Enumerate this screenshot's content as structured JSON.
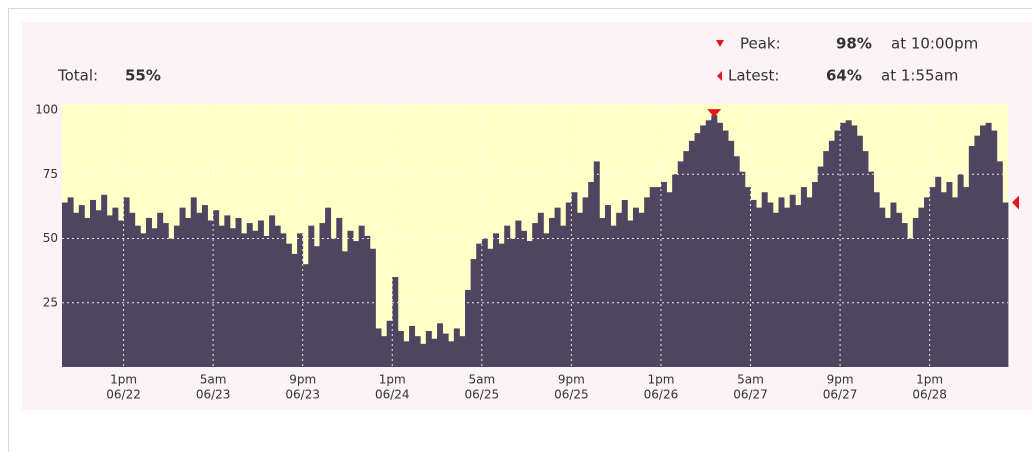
{
  "chart_data": {
    "type": "bar",
    "total": {
      "label": "Total:",
      "value": 55,
      "value_label": "55%"
    },
    "peak": {
      "label": "Peak:",
      "value": 98,
      "value_label": "98%",
      "time": "at 10:00pm",
      "x": 116
    },
    "latest": {
      "label": "Latest:",
      "value": 64,
      "value_label": "64%",
      "time": "at 1:55am",
      "x": 168
    },
    "color": "#4e4660",
    "plot_background": "#ffffc8",
    "marker_color": "#e4161c",
    "grid": true,
    "ylim": [
      0,
      100
    ],
    "yticks": [
      25,
      50,
      75,
      100
    ],
    "xlim": [
      0,
      169
    ],
    "xticks": [
      {
        "value": 11,
        "label": "1pm",
        "date": "06/22"
      },
      {
        "value": 27,
        "label": "5am",
        "date": "06/23"
      },
      {
        "value": 43,
        "label": "9pm",
        "date": "06/23"
      },
      {
        "value": 59,
        "label": "1pm",
        "date": "06/24"
      },
      {
        "value": 75,
        "label": "5am",
        "date": "06/25"
      },
      {
        "value": 91,
        "label": "9pm",
        "date": "06/25"
      },
      {
        "value": 107,
        "label": "1pm",
        "date": "06/26"
      },
      {
        "value": 123,
        "label": "5am",
        "date": "06/27"
      },
      {
        "value": 139,
        "label": "9pm",
        "date": "06/27"
      },
      {
        "value": 155,
        "label": "1pm",
        "date": "06/28"
      }
    ],
    "x": [
      0,
      1,
      2,
      3,
      4,
      5,
      6,
      7,
      8,
      9,
      10,
      11,
      12,
      13,
      14,
      15,
      16,
      17,
      18,
      19,
      20,
      21,
      22,
      23,
      24,
      25,
      26,
      27,
      28,
      29,
      30,
      31,
      32,
      33,
      34,
      35,
      36,
      37,
      38,
      39,
      40,
      41,
      42,
      43,
      44,
      45,
      46,
      47,
      48,
      49,
      50,
      51,
      52,
      53,
      54,
      55,
      56,
      57,
      58,
      59,
      60,
      61,
      62,
      63,
      64,
      65,
      66,
      67,
      68,
      69,
      70,
      71,
      72,
      73,
      74,
      75,
      76,
      77,
      78,
      79,
      80,
      81,
      82,
      83,
      84,
      85,
      86,
      87,
      88,
      89,
      90,
      91,
      92,
      93,
      94,
      95,
      96,
      97,
      98,
      99,
      100,
      101,
      102,
      103,
      104,
      105,
      106,
      107,
      108,
      109,
      110,
      111,
      112,
      113,
      114,
      115,
      116,
      117,
      118,
      119,
      120,
      121,
      122,
      123,
      124,
      125,
      126,
      127,
      128,
      129,
      130,
      131,
      132,
      133,
      134,
      135,
      136,
      137,
      138,
      139,
      140,
      141,
      142,
      143,
      144,
      145,
      146,
      147,
      148,
      149,
      150,
      151,
      152,
      153,
      154,
      155,
      156,
      157,
      158,
      159,
      160,
      161,
      162,
      163,
      164,
      165,
      166,
      167,
      168
    ],
    "values": [
      64,
      66,
      60,
      63,
      58,
      65,
      61,
      67,
      59,
      62,
      57,
      66,
      60,
      55,
      52,
      58,
      54,
      60,
      56,
      50,
      55,
      62,
      58,
      66,
      60,
      63,
      57,
      61,
      55,
      59,
      54,
      58,
      52,
      56,
      53,
      57,
      51,
      59,
      55,
      52,
      48,
      44,
      52,
      40,
      55,
      47,
      56,
      62,
      50,
      58,
      45,
      53,
      49,
      55,
      51,
      46,
      15,
      12,
      18,
      35,
      14,
      10,
      16,
      12,
      9,
      14,
      11,
      17,
      13,
      10,
      15,
      12,
      30,
      42,
      48,
      50,
      46,
      52,
      48,
      55,
      50,
      57,
      53,
      49,
      56,
      60,
      52,
      58,
      62,
      55,
      64,
      68,
      60,
      66,
      72,
      80,
      58,
      63,
      55,
      60,
      65,
      57,
      62,
      60,
      66,
      70,
      70,
      72,
      68,
      75,
      80,
      84,
      88,
      91,
      94,
      96,
      98,
      95,
      92,
      88,
      82,
      76,
      70,
      65,
      62,
      68,
      64,
      60,
      66,
      62,
      67,
      63,
      70,
      66,
      72,
      78,
      84,
      88,
      92,
      95,
      96,
      94,
      90,
      84,
      76,
      68,
      62,
      58,
      64,
      60,
      56,
      50,
      58,
      62,
      66,
      70,
      74,
      68,
      72,
      66,
      75,
      70,
      86,
      90,
      94,
      95,
      92,
      80,
      64
    ]
  }
}
